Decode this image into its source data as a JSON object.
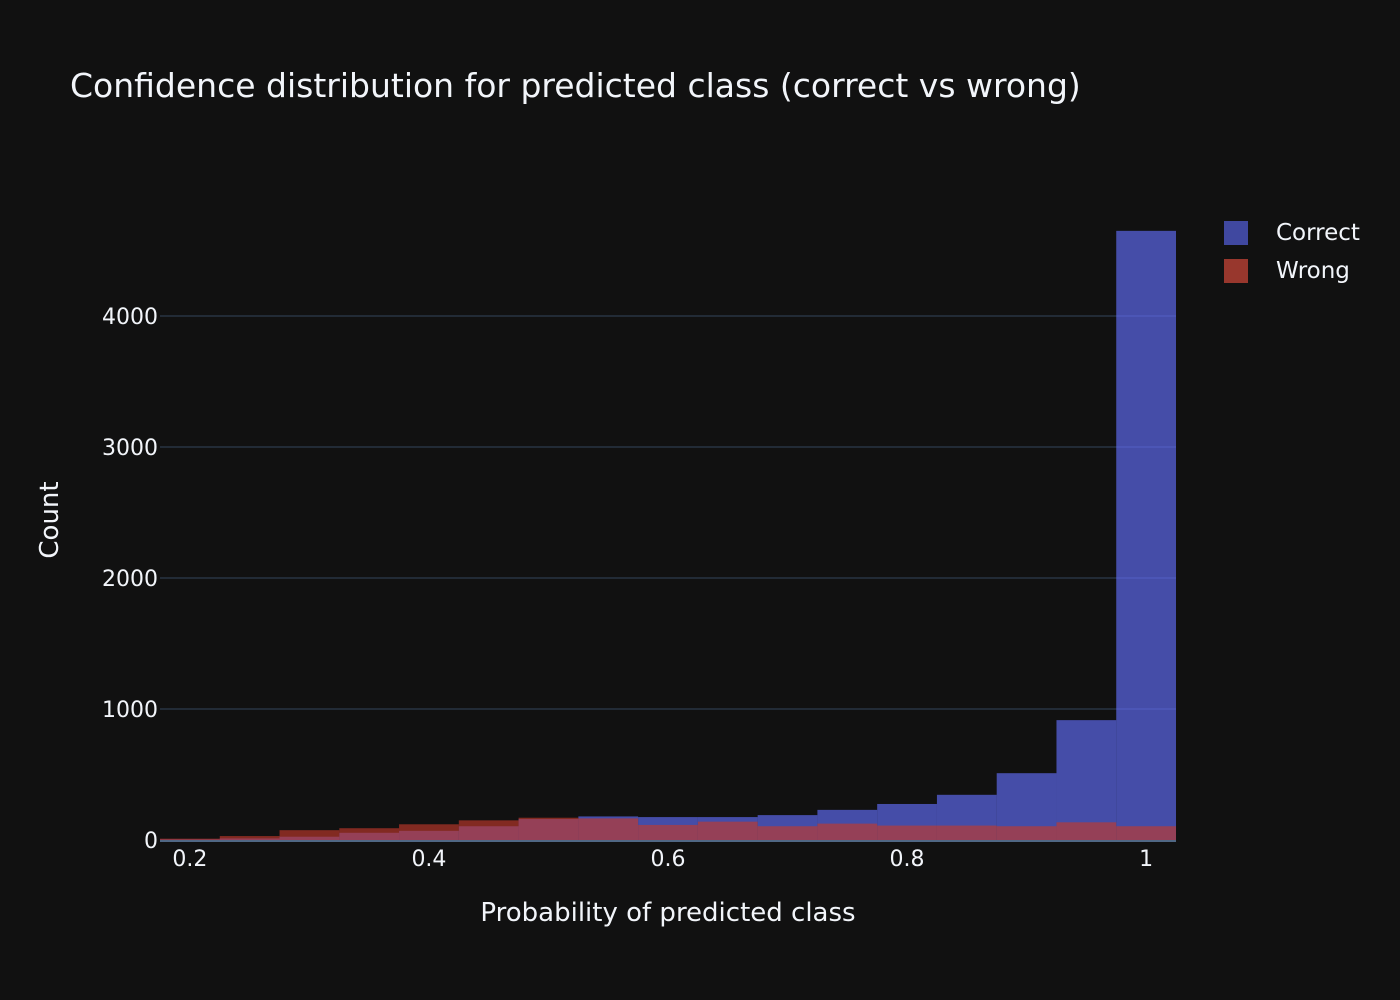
{
  "chart_data": {
    "type": "bar",
    "barmode": "overlay",
    "title": "Confidence distribution for predicted class (correct vs wrong)",
    "xlabel": "Probability of predicted class",
    "ylabel": "Count",
    "bin_width": 0.05,
    "x": [
      0.2,
      0.25,
      0.3,
      0.35,
      0.4,
      0.45,
      0.5,
      0.55,
      0.6,
      0.65,
      0.7,
      0.75,
      0.8,
      0.85,
      0.9,
      0.95,
      1.0
    ],
    "series": [
      {
        "name": "Correct",
        "color": "#636efa",
        "values": [
          5,
          12,
          25,
          55,
          70,
          105,
          160,
          180,
          175,
          175,
          190,
          230,
          275,
          345,
          510,
          915,
          4650
        ]
      },
      {
        "name": "Wrong",
        "color": "#c0392b",
        "values": [
          10,
          30,
          75,
          90,
          120,
          150,
          170,
          165,
          115,
          140,
          105,
          125,
          110,
          110,
          105,
          135,
          105
        ]
      }
    ],
    "xlim": [
      0.175,
      1.025
    ],
    "ylim": [
      0,
      4900
    ],
    "xticks": [
      0.2,
      0.4,
      0.6,
      0.8,
      1
    ],
    "xtick_labels": [
      "0.2",
      "0.4",
      "0.6",
      "0.8",
      "1"
    ],
    "yticks": [
      0,
      1000,
      2000,
      3000,
      4000
    ],
    "ytick_labels": [
      "0",
      "1000",
      "2000",
      "3000",
      "4000"
    ],
    "grid": true,
    "legend_position": "top-right"
  },
  "legend": {
    "items": [
      {
        "label": "Correct",
        "color": "#4048a0"
      },
      {
        "label": "Wrong",
        "color": "#98372d"
      }
    ]
  }
}
